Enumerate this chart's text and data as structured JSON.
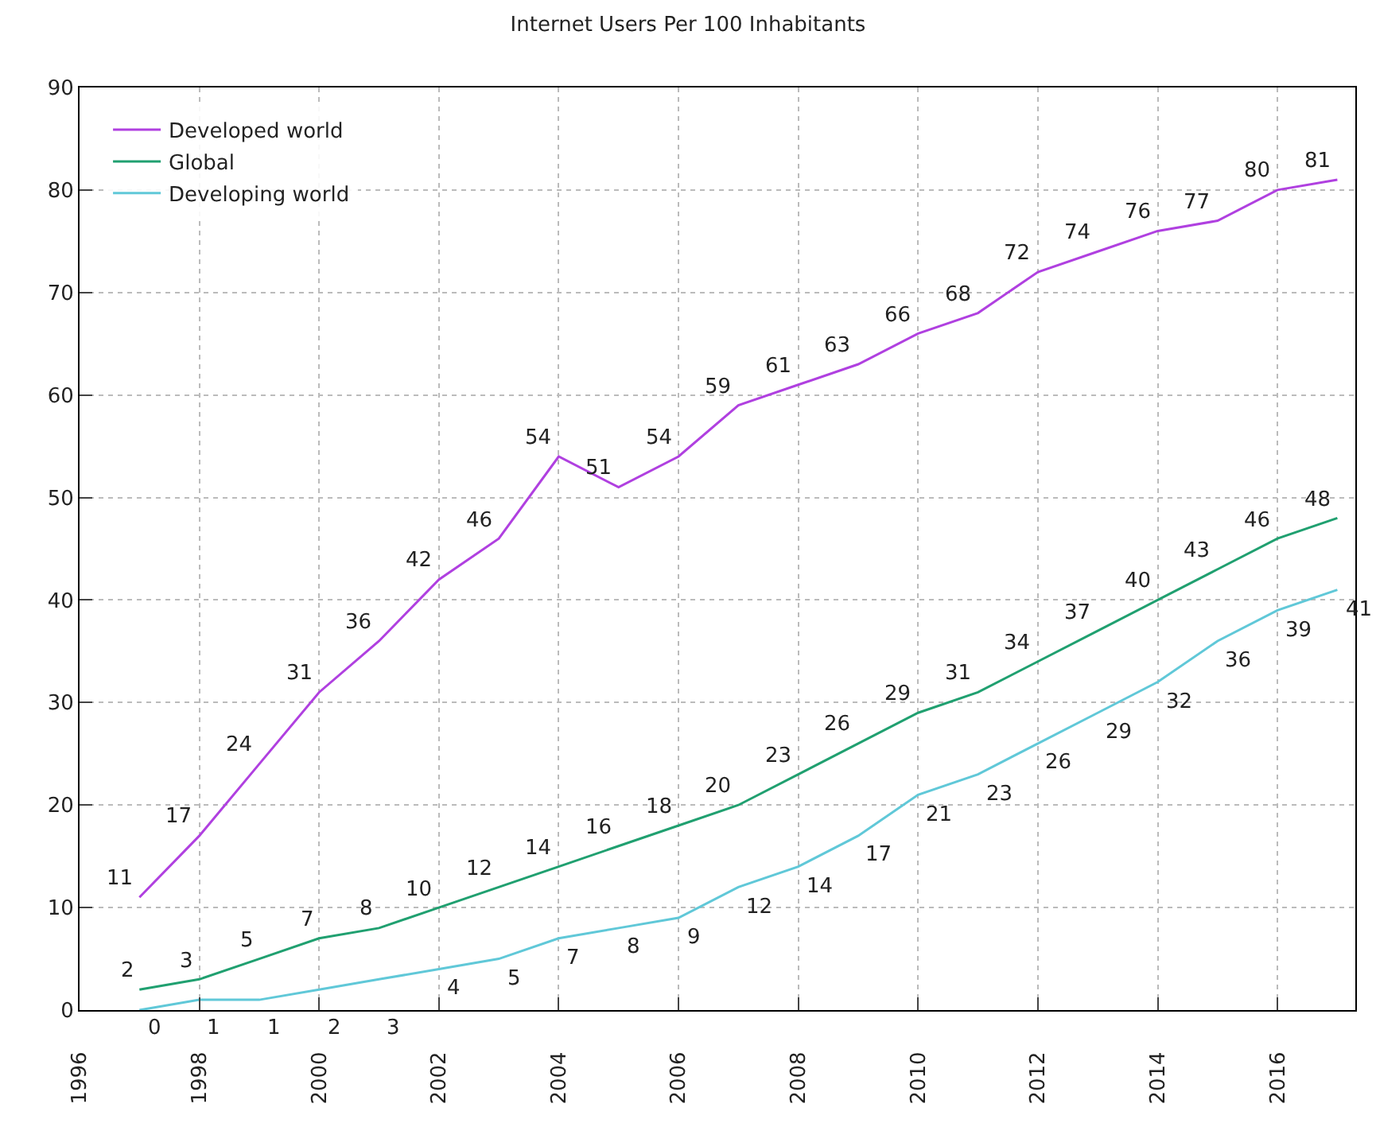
{
  "chart_data": {
    "type": "line",
    "title": "Internet Users Per 100 Inhabitants",
    "x": [
      1997,
      1998,
      1999,
      2000,
      2001,
      2002,
      2003,
      2004,
      2005,
      2006,
      2007,
      2008,
      2009,
      2010,
      2011,
      2012,
      2013,
      2014,
      2015,
      2016,
      2017
    ],
    "series": [
      {
        "name": "Developed world",
        "color": "#b040e0",
        "values": [
          11,
          17,
          24,
          31,
          36,
          42,
          46,
          54,
          51,
          54,
          59,
          61,
          63,
          66,
          68,
          72,
          74,
          76,
          77,
          80,
          81
        ]
      },
      {
        "name": "Global",
        "color": "#20a070",
        "values": [
          2,
          3,
          5,
          7,
          8,
          10,
          12,
          14,
          16,
          18,
          20,
          23,
          26,
          29,
          31,
          34,
          37,
          40,
          43,
          46,
          48
        ]
      },
      {
        "name": "Developing world",
        "color": "#60c8d8",
        "values": [
          0,
          1,
          1,
          2,
          3,
          4,
          5,
          7,
          8,
          9,
          12,
          14,
          17,
          21,
          23,
          26,
          29,
          32,
          36,
          39,
          41
        ]
      }
    ],
    "xlim": [
      1996,
      2017.3
    ],
    "xticks": [
      1996,
      1998,
      2000,
      2002,
      2004,
      2006,
      2008,
      2010,
      2012,
      2014,
      2016
    ],
    "ylim": [
      0,
      90
    ],
    "yticks": [
      0,
      10,
      20,
      30,
      40,
      50,
      60,
      70,
      80,
      90
    ],
    "grid": true,
    "legend": "top left",
    "data_labels": true,
    "marker": "none",
    "line_style": "solid"
  }
}
